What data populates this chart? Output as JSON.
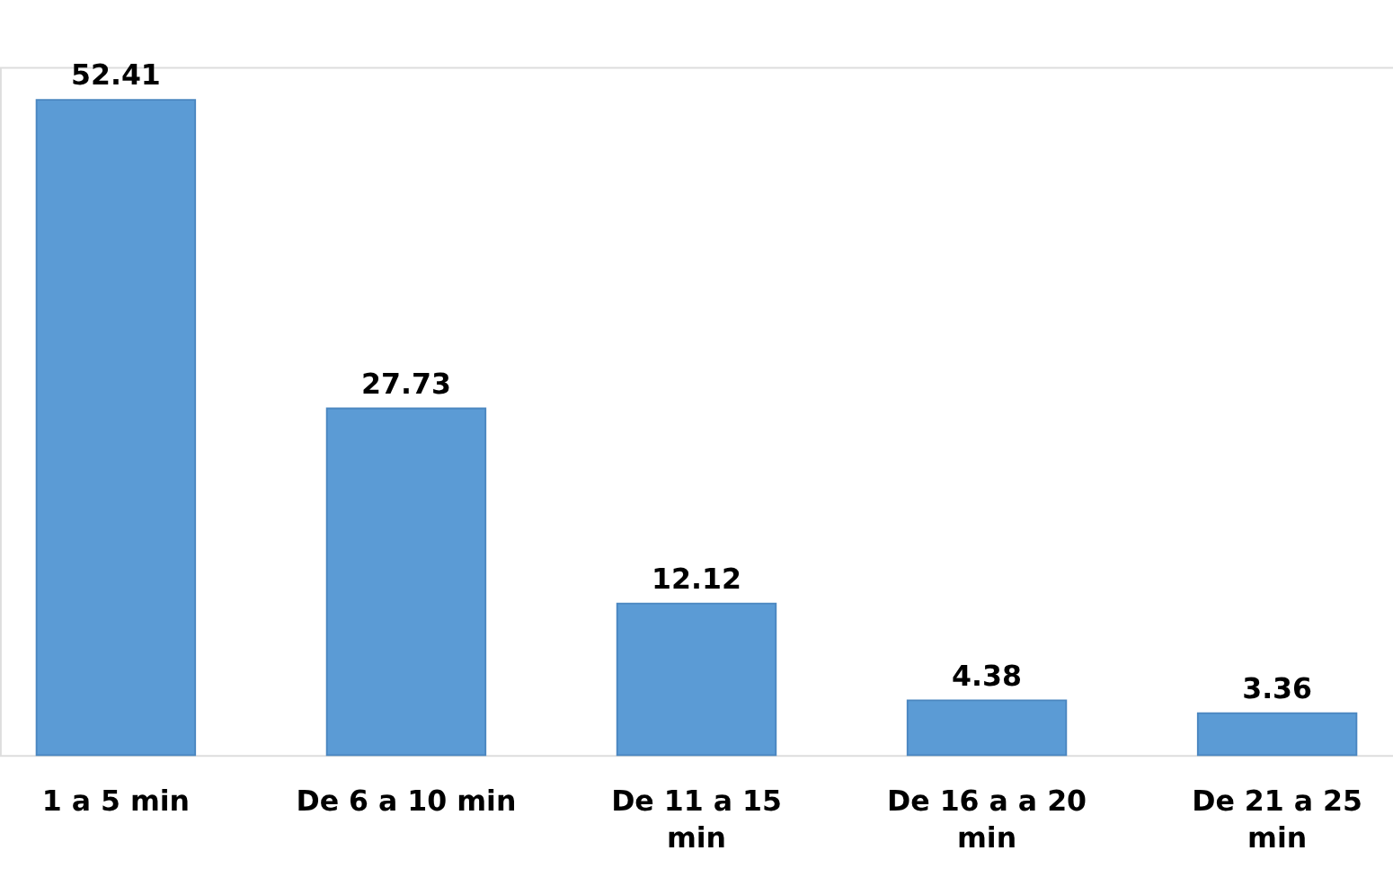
{
  "chart_data": {
    "type": "bar",
    "categories": [
      "1 a 5 min",
      "De 6 a 10 min",
      "De 11 a 15 min",
      "De 16 a a 20 min",
      "De 21 a 25 min"
    ],
    "values": [
      52.41,
      27.73,
      12.12,
      4.38,
      3.36
    ],
    "color": "#5b9bd5",
    "data_labels": true,
    "grid": false,
    "legend": false
  }
}
